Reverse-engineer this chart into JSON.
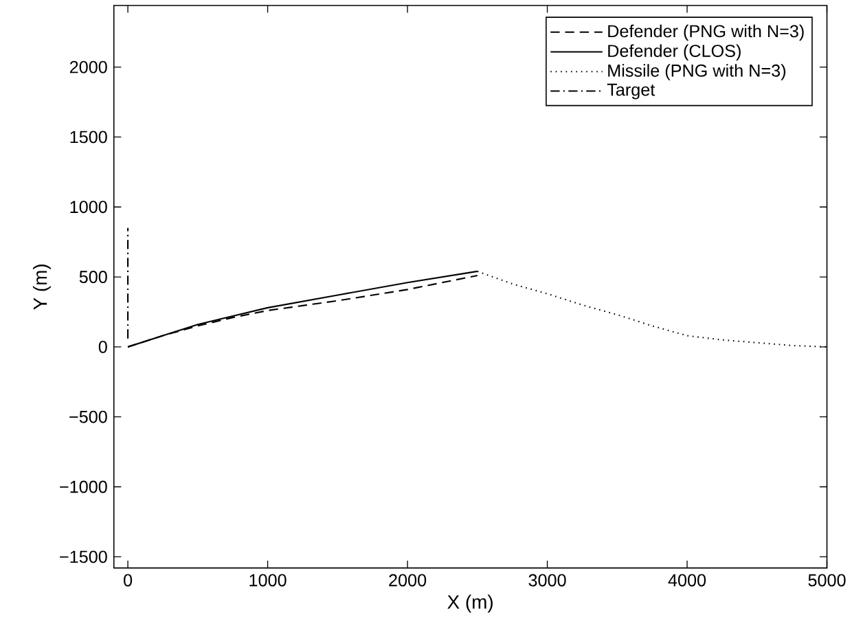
{
  "chart_data": {
    "type": "line",
    "xlabel": "X (m)",
    "ylabel": "Y (m)",
    "xlim": [
      -100,
      5000
    ],
    "ylim": [
      -1580,
      2440
    ],
    "xticks": [
      0,
      1000,
      2000,
      3000,
      4000,
      5000
    ],
    "yticks": [
      {
        "value": -1500,
        "label": "−1500"
      },
      {
        "value": -1000,
        "label": "−1000"
      },
      {
        "value": -500,
        "label": "−500"
      },
      0,
      500,
      1000,
      1500,
      2000
    ],
    "grid": false,
    "legend": "top right",
    "marker": "none",
    "series": [
      {
        "name": "Defender (PNG with N=3)",
        "color": "#000000",
        "line_style": "dashed",
        "x": [
          0,
          250,
          500,
          750,
          1000,
          1500,
          2000,
          2500
        ],
        "values": [
          0,
          80,
          150,
          210,
          260,
          330,
          410,
          510
        ]
      },
      {
        "name": "Defender (CLOS)",
        "color": "#000000",
        "line_style": "solid",
        "x": [
          0,
          250,
          500,
          750,
          1000,
          1500,
          2000,
          2500
        ],
        "values": [
          0,
          80,
          160,
          220,
          280,
          370,
          460,
          540
        ]
      },
      {
        "name": "Missile (PNG with N=3)",
        "color": "#000000",
        "line_style": "dotted",
        "x": [
          2500,
          2750,
          3000,
          3250,
          3500,
          3750,
          4000,
          4250,
          4500,
          4750,
          5000
        ],
        "values": [
          540,
          450,
          380,
          300,
          230,
          150,
          80,
          50,
          30,
          10,
          0
        ]
      },
      {
        "name": "Target",
        "color": "#000000",
        "line_style": "dashdot",
        "x": [
          0,
          0
        ],
        "values": [
          60,
          850
        ]
      }
    ]
  }
}
